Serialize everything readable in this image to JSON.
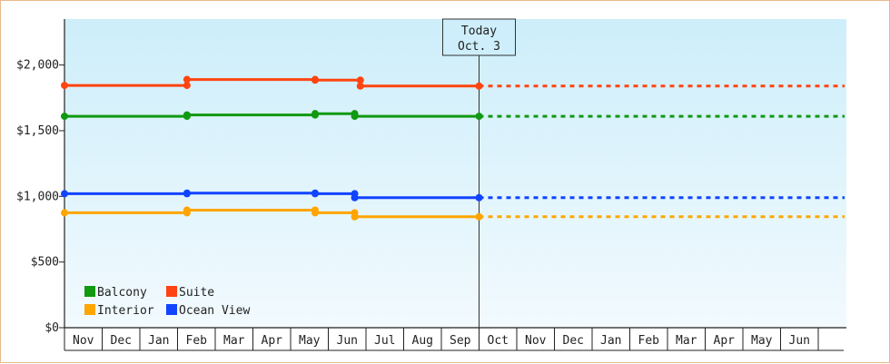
{
  "chart_data": {
    "type": "line",
    "title": "",
    "xlabel": "",
    "ylabel": "",
    "ylim": [
      0,
      2350
    ],
    "y_ticks": [
      {
        "value": 0,
        "label": "$0"
      },
      {
        "value": 500,
        "label": "$500"
      },
      {
        "value": 1000,
        "label": "$1,000"
      },
      {
        "value": 1500,
        "label": "$1,500"
      },
      {
        "value": 2000,
        "label": "$2,000"
      }
    ],
    "x_months": [
      "Nov",
      "Dec",
      "Jan",
      "Feb",
      "Mar",
      "Apr",
      "May",
      "Jun",
      "Jul",
      "Aug",
      "Sep",
      "Oct",
      "Nov",
      "Dec",
      "Jan",
      "Feb",
      "Mar",
      "Apr",
      "May",
      "Jun"
    ],
    "today": {
      "line1": "Today",
      "line2": "Oct. 3",
      "x": 11.0
    },
    "projection_end": 20.7,
    "grid": false,
    "legend_position": "bottom-left",
    "series": [
      {
        "name": "Balcony",
        "color": "#119911",
        "points": [
          [
            0.0,
            1610
          ],
          [
            3.25,
            1610
          ],
          [
            3.25,
            1620
          ],
          [
            6.65,
            1620
          ],
          [
            6.65,
            1630
          ],
          [
            7.7,
            1630
          ],
          [
            7.7,
            1610
          ],
          [
            11.0,
            1610
          ]
        ]
      },
      {
        "name": "Suite",
        "color": "#ff4411",
        "points": [
          [
            0.0,
            1845
          ],
          [
            3.25,
            1845
          ],
          [
            3.25,
            1890
          ],
          [
            6.65,
            1890
          ],
          [
            6.65,
            1885
          ],
          [
            7.85,
            1885
          ],
          [
            7.85,
            1840
          ],
          [
            11.0,
            1840
          ]
        ]
      },
      {
        "name": "Interior",
        "color": "#ffa500",
        "points": [
          [
            0.0,
            875
          ],
          [
            3.25,
            875
          ],
          [
            3.25,
            895
          ],
          [
            6.65,
            895
          ],
          [
            6.65,
            875
          ],
          [
            7.7,
            875
          ],
          [
            7.7,
            845
          ],
          [
            11.0,
            845
          ]
        ]
      },
      {
        "name": "Ocean View",
        "color": "#1144ff",
        "points": [
          [
            0.0,
            1020
          ],
          [
            3.25,
            1020
          ],
          [
            3.25,
            1025
          ],
          [
            6.65,
            1025
          ],
          [
            6.65,
            1020
          ],
          [
            7.7,
            1020
          ],
          [
            7.7,
            990
          ],
          [
            11.0,
            990
          ]
        ]
      }
    ],
    "legend_order": [
      "Balcony",
      "Suite",
      "Interior",
      "Ocean View"
    ]
  }
}
